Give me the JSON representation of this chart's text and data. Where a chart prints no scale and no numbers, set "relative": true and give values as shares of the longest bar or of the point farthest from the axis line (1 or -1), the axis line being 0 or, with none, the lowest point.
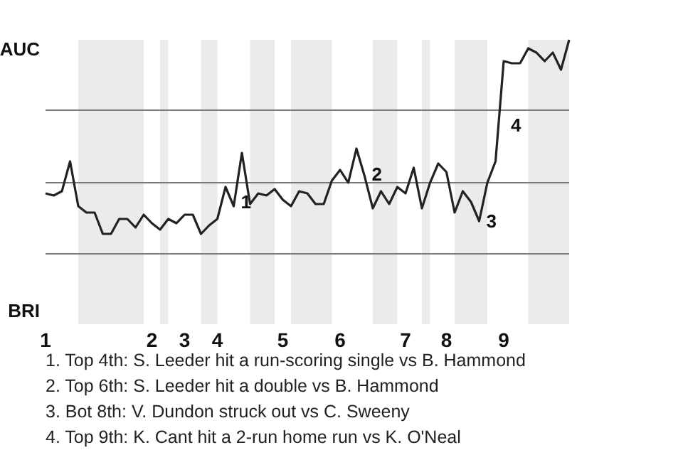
{
  "chart_data": {
    "type": "line",
    "relative": true,
    "categories": [
      "1",
      null,
      null,
      null,
      null,
      null,
      null,
      null,
      null,
      null,
      null,
      null,
      null,
      "2",
      null,
      null,
      null,
      "3",
      null,
      null,
      null,
      "4",
      null,
      null,
      null,
      null,
      null,
      null,
      null,
      "5",
      null,
      null,
      null,
      null,
      null,
      null,
      "6",
      null,
      null,
      null,
      null,
      null,
      null,
      null,
      "7",
      null,
      null,
      null,
      null,
      "8",
      null,
      null,
      null,
      null,
      null,
      null,
      "9",
      null,
      null,
      null,
      null,
      null,
      null,
      null,
      null
    ],
    "values": [
      0.28,
      0.27,
      0.29,
      0.43,
      0.22,
      0.19,
      0.19,
      0.09,
      0.09,
      0.16,
      0.16,
      0.12,
      0.18,
      0.14,
      0.11,
      0.16,
      0.14,
      0.18,
      0.18,
      0.09,
      0.13,
      0.16,
      0.31,
      0.22,
      0.47,
      0.23,
      0.28,
      0.27,
      0.3,
      0.25,
      0.22,
      0.29,
      0.28,
      0.23,
      0.23,
      0.34,
      0.39,
      0.33,
      0.49,
      0.36,
      0.21,
      0.29,
      0.23,
      0.31,
      0.28,
      0.4,
      0.21,
      0.33,
      0.42,
      0.38,
      0.19,
      0.29,
      0.24,
      0.15,
      0.33,
      0.43,
      0.9,
      0.89,
      0.89,
      0.96,
      0.94,
      0.9,
      0.94,
      0.86,
      1
    ],
    "color": "#222222",
    "marker": "none",
    "ref_lines": [
      {
        "axis": "y",
        "value": 0.33,
        "color": "#777777"
      },
      {
        "axis": "y",
        "value": 0.67,
        "color": "#777777"
      }
    ],
    "annotations": [
      "AUC",
      "BRI",
      "1",
      "2",
      "3",
      "4",
      "1. Top 4th: S. Leeder hit a run-scoring single vs B. Hammond",
      "2. Top 6th: S. Leeder hit a double vs B. Hammond",
      "3. Bot 8th: V. Dundon struck out vs C. Sweeny",
      "4. Top 9th: K. Cant hit a 2-run home run vs K. O'Neal"
    ]
  }
}
